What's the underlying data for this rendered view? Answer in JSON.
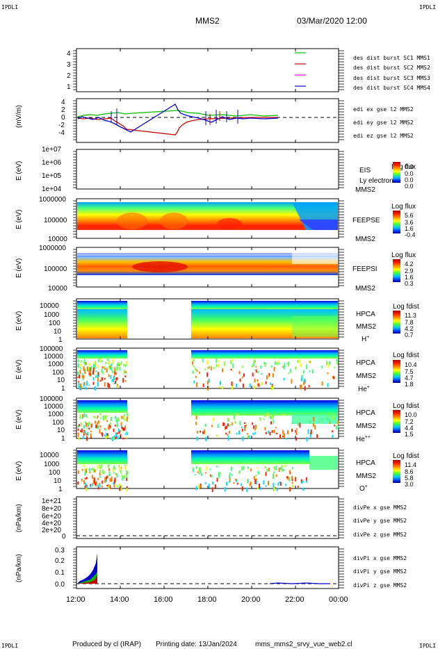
{
  "header": {
    "corner_tl": "IPDLI",
    "corner_tr": "IPDLI",
    "corner_bl": "IPDLI",
    "corner_br": "IPDLI",
    "spacecraft": "MMS2",
    "datetime": "03/Mar/2020 12:00"
  },
  "footer": {
    "produced": "Produced by cl (IRAP)",
    "printing": "Printing date: 13/Jan/2024",
    "file": "mms_mms2_srvy_vue_web2.cl"
  },
  "colors": {
    "mms1": "#0000cc",
    "mms2": "#dd00dd",
    "mms3": "#cc0000",
    "mms4": "#00bb00",
    "x": "#cc0000",
    "y": "#00bb00",
    "z": "#0000cc"
  },
  "time_axis": [
    "12:00",
    "14:00",
    "16:00",
    "18:00",
    "20:00",
    "22:00",
    "00:00"
  ],
  "panels": {
    "burst": {
      "yticks": [
        "4",
        "3",
        "2",
        "1"
      ],
      "legend": [
        "des dist burst SC1 MMS1",
        "des dist burst SC2 MMS2",
        "des dist burst SC3 MMS3",
        "des dist burst SC4 MMS4"
      ]
    },
    "edi": {
      "ylabel": "(mV/m)",
      "yticks": [
        "4",
        "2",
        "0",
        "-2",
        "-4"
      ],
      "legend": [
        "edi ex gse l2 MMS2",
        "edi ey gse l2 MMS2",
        "edi ez gse l2 MMS2"
      ]
    },
    "eis": {
      "ylabel": "E (eV)",
      "yticks": [
        "1e+07",
        "1e+06",
        "1e+05",
        "1e+04"
      ],
      "inst": "EIS",
      "sub": "MMS2",
      "extra": "phxtof",
      "overlay": "Ly electron to",
      "cb_title": "Log flux",
      "cb_ticks": [
        "0.0",
        "0.0",
        "0.0",
        "0.0"
      ]
    },
    "feepse": {
      "ylabel": "E (eV)",
      "yticks": [
        "1000000",
        "100000",
        "10000"
      ],
      "inst": "FEEPSE",
      "sub": "MMS2",
      "cb_title": "Log flux",
      "cb_ticks": [
        "5.6",
        "3.6",
        "1.6",
        "-0.4"
      ]
    },
    "feepsi": {
      "ylabel": "E (eV)",
      "yticks": [
        "1000000",
        "100000",
        "10000"
      ],
      "inst": "FEEPSI",
      "sub": "MMS2",
      "cb_title": "Log flux",
      "cb_ticks": [
        "4.2",
        "2.9",
        "1.6",
        "0.3"
      ]
    },
    "hpca_h": {
      "ylabel": "E (eV)",
      "yticks": [
        "10000",
        "1000",
        "100",
        "10",
        "1"
      ],
      "inst": "HPCA",
      "sub": "MMS2",
      "species": "H",
      "charge": "+",
      "cb_title": "Log fdist",
      "cb_ticks": [
        "11.3",
        "7.8",
        "4.2",
        "0.7"
      ]
    },
    "hpca_he": {
      "ylabel": "E (eV)",
      "yticks": [
        "100000",
        "10000",
        "1000",
        "100",
        "10",
        "1"
      ],
      "inst": "HPCA",
      "sub": "MMS2",
      "species": "He",
      "charge": "+",
      "cb_title": "Log fdist",
      "cb_ticks": [
        "10.4",
        "7.5",
        "4.7",
        "1.8"
      ]
    },
    "hpca_hepp": {
      "ylabel": "E (eV)",
      "yticks": [
        "100000",
        "10000",
        "1000",
        "100",
        "10",
        "1"
      ],
      "inst": "HPCA",
      "sub": "MMS2",
      "species": "He",
      "charge": "++",
      "cb_title": "Log fdist",
      "cb_ticks": [
        "10.0",
        "7.2",
        "4.4",
        "1.5"
      ]
    },
    "hpca_o": {
      "ylabel": "E (eV)",
      "yticks": [
        "10000",
        "1000",
        "100",
        "10",
        "1"
      ],
      "inst": "HPCA",
      "sub": "MMS2",
      "species": "O",
      "charge": "+",
      "cb_title": "Log fdist",
      "cb_ticks": [
        "11.4",
        "8.6",
        "5.8",
        "3.0"
      ]
    },
    "divpe": {
      "ylabel": "(nPa/km)",
      "yticks": [
        "1e+21",
        "8e+20",
        "6e+20",
        "4e+20",
        "2e+20",
        "0"
      ],
      "legend": [
        "divPe x gse MMS2",
        "divPe y gse MMS2",
        "divPe z gse MMS2"
      ]
    },
    "divpi": {
      "ylabel": "(nPa/km)",
      "yticks": [
        "0.3",
        "0.2",
        "0.1",
        "0.0"
      ],
      "legend": [
        "divPi x gse MMS2",
        "divPi y gse MMS2",
        "divPi z gse MMS2"
      ]
    }
  },
  "chart_data": {
    "type": "heatmap",
    "x_range": [
      "12:00",
      "00:00"
    ],
    "hpca_data_gap_hours": [
      [
        14.3,
        17.3
      ]
    ],
    "divpi_y_range": [
      0,
      0.3
    ],
    "divpi_peak_approx": 0.27
  }
}
